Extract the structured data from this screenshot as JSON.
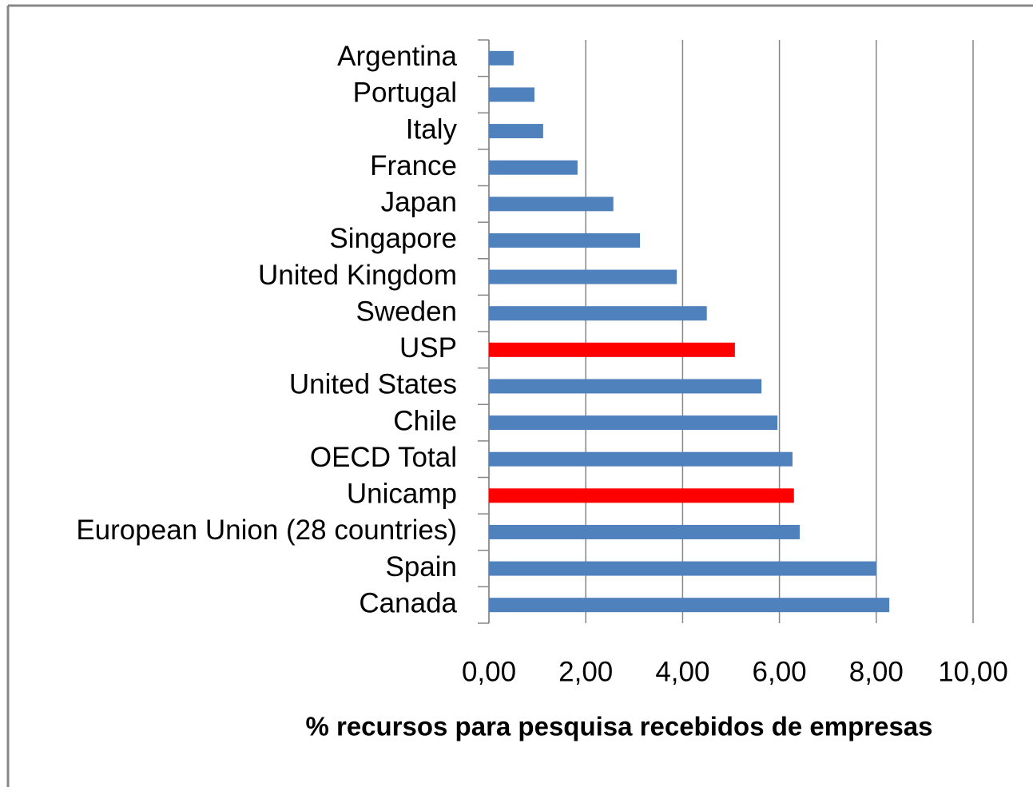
{
  "chart_data": {
    "type": "bar",
    "orientation": "horizontal",
    "categories": [
      "Argentina",
      "Portugal",
      "Italy",
      "France",
      "Japan",
      "Singapore",
      "United Kingdom",
      "Sweden",
      "USP",
      "United States",
      "Chile",
      "OECD Total",
      "Unicamp",
      "European Union (28 countries)",
      "Spain",
      "Canada"
    ],
    "values": [
      0.51,
      0.94,
      1.12,
      1.83,
      2.57,
      3.12,
      3.88,
      4.5,
      5.08,
      5.63,
      5.96,
      6.27,
      6.3,
      6.42,
      8.0,
      8.27
    ],
    "colors": [
      "#4f81bd",
      "#4f81bd",
      "#4f81bd",
      "#4f81bd",
      "#4f81bd",
      "#4f81bd",
      "#4f81bd",
      "#4f81bd",
      "#ff0000",
      "#4f81bd",
      "#4f81bd",
      "#4f81bd",
      "#ff0000",
      "#4f81bd",
      "#4f81bd",
      "#4f81bd"
    ],
    "x_label": "% recursos para pesquisa recebidos de empresas",
    "xlim": [
      0,
      10
    ],
    "xticks": [
      {
        "value": 0,
        "label": "0,00"
      },
      {
        "value": 2,
        "label": "2,00"
      },
      {
        "value": 4,
        "label": "4,00"
      },
      {
        "value": 6,
        "label": "6,00"
      },
      {
        "value": 8,
        "label": "8,00"
      },
      {
        "value": 10,
        "label": "10,00"
      }
    ],
    "grid": true
  }
}
